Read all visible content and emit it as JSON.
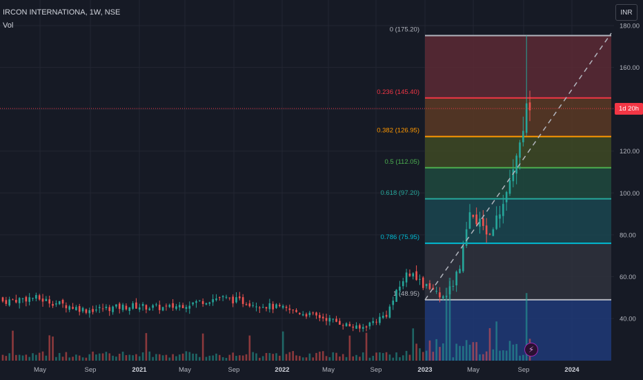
{
  "header": {
    "symbol_title": "IRCON INTERNATIONA, 1W, NSE",
    "volume_label": "Vol"
  },
  "price_axis": {
    "currency_button": "INR",
    "ticks": [
      "180.00",
      "160.00",
      "140.00",
      "120.00",
      "100.00",
      "80.00",
      "60.00",
      "40.00"
    ],
    "countdown_label": "1d 20h"
  },
  "time_axis": {
    "labels": [
      {
        "text": "May",
        "bold": false
      },
      {
        "text": "Sep",
        "bold": false
      },
      {
        "text": "2021",
        "bold": true
      },
      {
        "text": "May",
        "bold": false
      },
      {
        "text": "Sep",
        "bold": false
      },
      {
        "text": "2022",
        "bold": true
      },
      {
        "text": "May",
        "bold": false
      },
      {
        "text": "Sep",
        "bold": false
      },
      {
        "text": "2023",
        "bold": true
      },
      {
        "text": "May",
        "bold": false
      },
      {
        "text": "Sep",
        "bold": false
      },
      {
        "text": "2024",
        "bold": true
      }
    ]
  },
  "fib_levels": [
    {
      "label": "0 (175.20)",
      "ratio": 0,
      "price": 175.2,
      "color": "#b2b5be",
      "fill": "#5c2a35"
    },
    {
      "label": "0.236 (145.40)",
      "ratio": 0.236,
      "price": 145.4,
      "color": "#f23645",
      "fill": "#5a3a25"
    },
    {
      "label": "0.382 (126.95)",
      "ratio": 0.382,
      "price": 126.95,
      "color": "#ff9800",
      "fill": "#3e4a25"
    },
    {
      "label": "0.5 (112.05)",
      "ratio": 0.5,
      "price": 112.05,
      "color": "#4caf50",
      "fill": "#1e4a3e"
    },
    {
      "label": "0.618 (97.20)",
      "ratio": 0.618,
      "price": 97.2,
      "color": "#26a69a",
      "fill": "#1a4650"
    },
    {
      "label": "0.786 (75.95)",
      "ratio": 0.786,
      "price": 75.95,
      "color": "#00bcd4",
      "fill": "#2f323d"
    },
    {
      "label": "1 (48.95)",
      "ratio": 1,
      "price": 48.95,
      "color": "#b2b5be",
      "fill": "#1f3a78"
    }
  ],
  "colors": {
    "up": "#26a69a",
    "down": "#ef5350",
    "background": "#161a25",
    "grid": "#232632",
    "last_price_line": "#f23645",
    "event_badge": "#9c27b0"
  },
  "icons": {
    "event_flash": "lightning-bolt-icon"
  },
  "chart_data": {
    "type": "candlestick",
    "interval": "1W",
    "y_range": [
      20,
      186
    ],
    "current_price": 139.5,
    "segments": [
      {
        "weeks": 10,
        "from": 48,
        "to": 50
      },
      {
        "weeks": 16,
        "from": 50,
        "to": 44
      },
      {
        "weeks": 14,
        "from": 44,
        "to": 46
      },
      {
        "weeks": 10,
        "from": 46,
        "to": 45
      },
      {
        "weeks": 16,
        "from": 45,
        "to": 50
      },
      {
        "weeks": 18,
        "from": 50,
        "to": 45
      },
      {
        "weeks": 14,
        "from": 45,
        "to": 40
      },
      {
        "weeks": 10,
        "from": 40,
        "to": 35
      },
      {
        "weeks": 8,
        "from": 35,
        "to": 42
      },
      {
        "weeks": 6,
        "from": 42,
        "to": 62
      },
      {
        "weeks": 6,
        "from": 62,
        "to": 55
      },
      {
        "weeks": 6,
        "from": 55,
        "to": 50
      },
      {
        "weeks": 4,
        "from": 50,
        "to": 65
      },
      {
        "weeks": 3,
        "from": 65,
        "to": 88
      },
      {
        "weeks": 6,
        "from": 88,
        "to": 82
      },
      {
        "weeks": 3,
        "from": 82,
        "to": 90
      },
      {
        "weeks": 3,
        "from": 90,
        "to": 104
      },
      {
        "weeks": 2,
        "from": 104,
        "to": 118
      },
      {
        "weeks": 1,
        "from": 118,
        "to": 128
      },
      {
        "weeks": 1,
        "from": 128,
        "to": 133
      },
      {
        "weeks": 1,
        "from": 133,
        "to": 146
      },
      {
        "weeks": 1,
        "from": 146,
        "to": 139.5
      }
    ]
  }
}
